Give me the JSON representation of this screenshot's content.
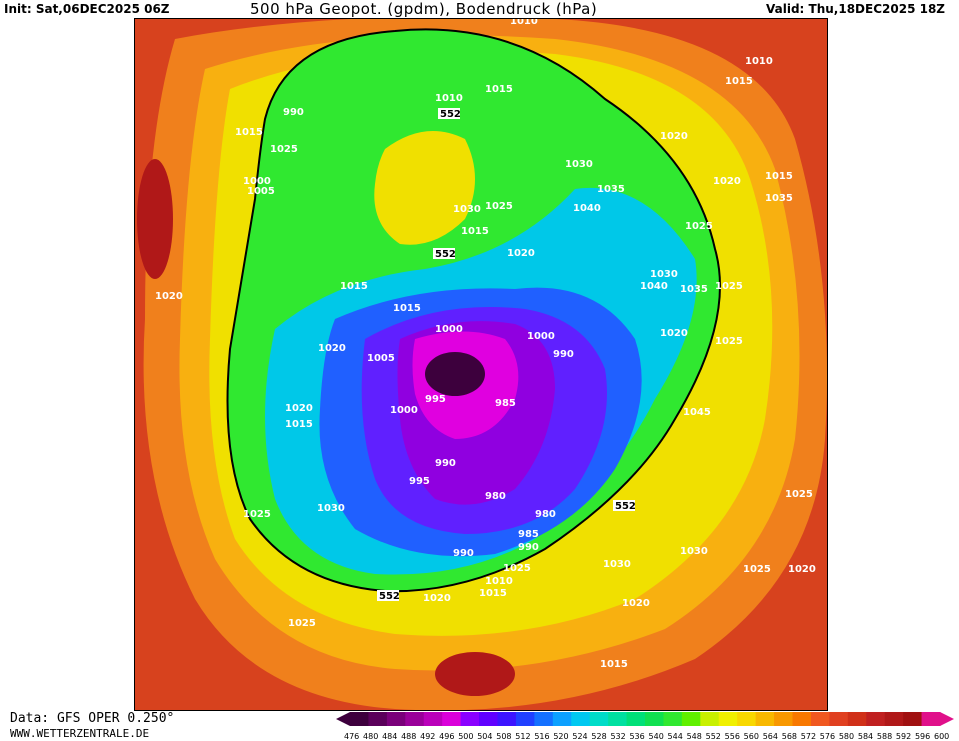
{
  "header": {
    "init": "Init: Sat,06DEC2025 06Z",
    "title": "500 hPa Geopot. (gpdm), Bodendruck (hPa)",
    "valid": "Valid: Thu,18DEC2025 18Z"
  },
  "footer": {
    "data_source": "Data: GFS OPER 0.250°",
    "website": "WWW.WETTERZENTRALE.DE"
  },
  "colorbar": {
    "ticks": [
      "476",
      "480",
      "484",
      "488",
      "492",
      "496",
      "500",
      "504",
      "508",
      "512",
      "516",
      "520",
      "524",
      "528",
      "532",
      "536",
      "540",
      "544",
      "548",
      "552",
      "556",
      "560",
      "564",
      "568",
      "572",
      "576",
      "580",
      "584",
      "588",
      "592",
      "596",
      "600"
    ],
    "colors": [
      "#3d003d",
      "#5a005a",
      "#7a007a",
      "#9a009a",
      "#ba00ba",
      "#da00da",
      "#8a00ff",
      "#6000ff",
      "#3c14ff",
      "#2040ff",
      "#1470ff",
      "#0ca0ff",
      "#00c8f0",
      "#00dcc8",
      "#00e0a0",
      "#00e078",
      "#10e050",
      "#30e830",
      "#60f000",
      "#c8f000",
      "#f0f000",
      "#f8d800",
      "#f8b800",
      "#f89800",
      "#f87800",
      "#f05820",
      "#e04020",
      "#d03018",
      "#c02020",
      "#b01818",
      "#a01010",
      "#e0108a"
    ]
  },
  "map": {
    "field_colors": {
      "outer": "#d7421e",
      "orange": "#f0801c",
      "yellow_orange": "#f8b010",
      "yellow": "#f0e000",
      "green": "#30e830",
      "cyan": "#00c8e8",
      "blue": "#2060ff",
      "violet": "#6020ff",
      "purple": "#9000e0",
      "magenta": "#e000e0",
      "dark": "#3d003d",
      "warm_core": "#b01818"
    },
    "isobar_labels": [
      "1020",
      "1010",
      "1015",
      "1025",
      "990",
      "1010",
      "552",
      "1000",
      "1005",
      "1030",
      "1035",
      "1040",
      "1025",
      "1030",
      "1020",
      "1015",
      "1020",
      "1015",
      "1035",
      "1025",
      "1030",
      "1040",
      "1035",
      "552",
      "1015",
      "1015",
      "1010",
      "1015",
      "1020",
      "1025",
      "1020",
      "1025",
      "1000",
      "1000",
      "990",
      "1005",
      "1000",
      "995",
      "985",
      "1015",
      "1020",
      "1045",
      "990",
      "995",
      "980",
      "980",
      "1025",
      "1030",
      "985",
      "990",
      "990",
      "1025",
      "1010",
      "552",
      "1030",
      "1025",
      "1020",
      "1025",
      "1020",
      "1015",
      "552",
      "1020",
      "1015",
      "1025",
      "1020",
      "1030",
      "1015"
    ]
  }
}
